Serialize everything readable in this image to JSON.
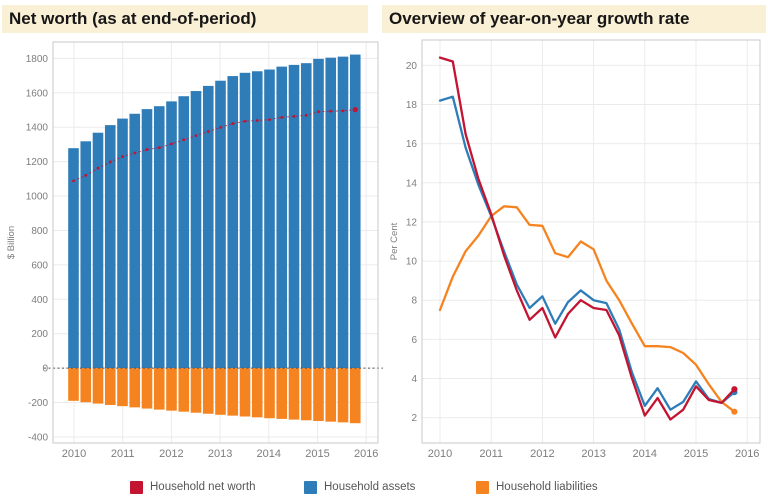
{
  "legend": {
    "items": [
      {
        "label": "Household net worth",
        "color": "#c31432"
      },
      {
        "label": "Household assets",
        "color": "#2e7cb8"
      },
      {
        "label": "Household liabilities",
        "color": "#f5831f"
      }
    ]
  },
  "chart_data": [
    {
      "type": "bar",
      "title": "Net worth (as at end-of-period)",
      "ylabel": "$ Billion",
      "xlabel": "",
      "grid": true,
      "zero_line": true,
      "legend_position": "bottom",
      "ylim": [
        -435,
        1895
      ],
      "y_ticks": [
        -400,
        -200,
        0,
        200,
        400,
        600,
        800,
        1000,
        1200,
        1400,
        1600,
        1800
      ],
      "x_ticks": [
        "2010",
        "2011",
        "2012",
        "2013",
        "2014",
        "2015",
        "2016"
      ],
      "categories": [
        "2010 Q1",
        "2010 Q2",
        "2010 Q3",
        "2010 Q4",
        "2011 Q1",
        "2011 Q2",
        "2011 Q3",
        "2011 Q4",
        "2012 Q1",
        "2012 Q2",
        "2012 Q3",
        "2012 Q4",
        "2013 Q1",
        "2013 Q2",
        "2013 Q3",
        "2013 Q4",
        "2014 Q1",
        "2014 Q2",
        "2014 Q3",
        "2014 Q4",
        "2015 Q1",
        "2015 Q2",
        "2015 Q3",
        "2015 Q4"
      ],
      "series": [
        {
          "name": "Household assets",
          "render": "bar",
          "color": "#2e7cb8",
          "values": [
            1278,
            1318,
            1368,
            1412,
            1450,
            1478,
            1505,
            1522,
            1550,
            1580,
            1610,
            1640,
            1670,
            1697,
            1716,
            1725,
            1735,
            1752,
            1762,
            1772,
            1797,
            1804,
            1810,
            1822
          ]
        },
        {
          "name": "Household liabilities",
          "render": "bar",
          "color": "#f5831f",
          "values": [
            -190,
            -198,
            -206,
            -214,
            -221,
            -228,
            -235,
            -241,
            -247,
            -253,
            -259,
            -265,
            -271,
            -276,
            -281,
            -286,
            -291,
            -295,
            -299,
            -303,
            -307,
            -311,
            -315,
            -320
          ]
        },
        {
          "name": "Household net worth",
          "render": "dotted_line_markers",
          "color": "#c31432",
          "values": [
            1088,
            1120,
            1162,
            1198,
            1229,
            1250,
            1270,
            1281,
            1303,
            1327,
            1351,
            1375,
            1399,
            1421,
            1435,
            1439,
            1444,
            1457,
            1463,
            1469,
            1490,
            1493,
            1495,
            1502
          ]
        }
      ]
    },
    {
      "type": "line",
      "title": "Overview of year-on-year growth rate",
      "ylabel": "Per Cent",
      "xlabel": "",
      "grid": true,
      "zero_line": false,
      "legend_position": "bottom",
      "ylim": [
        0.7,
        21.3
      ],
      "y_ticks": [
        2,
        4,
        6,
        8,
        10,
        12,
        14,
        16,
        18,
        20
      ],
      "x_ticks": [
        "2010",
        "2011",
        "2012",
        "2013",
        "2014",
        "2015",
        "2016"
      ],
      "categories": [
        "2010 Q1",
        "2010 Q2",
        "2010 Q3",
        "2010 Q4",
        "2011 Q1",
        "2011 Q2",
        "2011 Q3",
        "2011 Q4",
        "2012 Q1",
        "2012 Q2",
        "2012 Q3",
        "2012 Q4",
        "2013 Q1",
        "2013 Q2",
        "2013 Q3",
        "2013 Q4",
        "2014 Q1",
        "2014 Q2",
        "2014 Q3",
        "2014 Q4",
        "2015 Q1",
        "2015 Q2",
        "2015 Q3",
        "2015 Q4"
      ],
      "series": [
        {
          "name": "Household liabilities",
          "color": "#f5831f",
          "end_marker": true,
          "values": [
            7.5,
            9.2,
            10.5,
            11.3,
            12.3,
            12.8,
            12.75,
            11.85,
            11.8,
            10.4,
            10.2,
            11.0,
            10.6,
            9.0,
            8.0,
            6.8,
            5.65,
            5.65,
            5.6,
            5.3,
            4.7,
            3.7,
            2.8,
            2.3
          ]
        },
        {
          "name": "Household assets",
          "color": "#2e7cb8",
          "end_marker": true,
          "values": [
            18.2,
            18.4,
            15.8,
            13.9,
            12.3,
            10.5,
            8.8,
            7.6,
            8.2,
            6.8,
            7.9,
            8.5,
            8.0,
            7.85,
            6.5,
            4.3,
            2.6,
            3.5,
            2.4,
            2.8,
            3.85,
            2.95,
            2.75,
            3.3
          ]
        },
        {
          "name": "Household net worth",
          "color": "#c31432",
          "end_marker": true,
          "values": [
            20.4,
            20.2,
            16.5,
            14.2,
            12.4,
            10.3,
            8.5,
            7.0,
            7.6,
            6.1,
            7.3,
            8.0,
            7.6,
            7.5,
            6.2,
            4.0,
            2.1,
            3.0,
            1.9,
            2.4,
            3.6,
            2.9,
            2.75,
            3.45
          ]
        }
      ]
    }
  ]
}
